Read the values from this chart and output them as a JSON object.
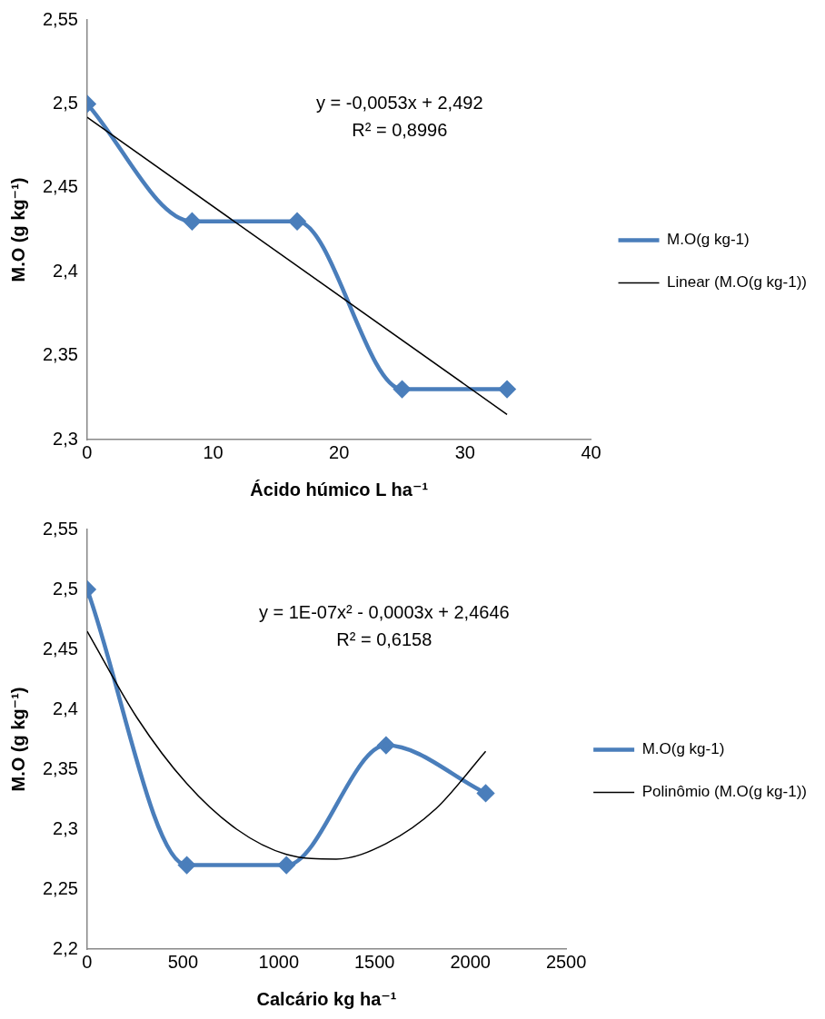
{
  "chart_data": [
    {
      "type": "line",
      "xlabel": "Ácido húmico L ha⁻¹",
      "ylabel": "M.O (g kg⁻¹)",
      "xlim": [
        0,
        40
      ],
      "xticks": [
        0,
        10,
        20,
        30,
        40
      ],
      "ylim": [
        2.3,
        2.55
      ],
      "yticks": [
        {
          "value": 2.3,
          "label": "2,3"
        },
        {
          "value": 2.35,
          "label": "2,35"
        },
        {
          "value": 2.4,
          "label": "2,4"
        },
        {
          "value": 2.45,
          "label": "2,45"
        },
        {
          "value": 2.5,
          "label": "2,5"
        },
        {
          "value": 2.55,
          "label": "2,55"
        }
      ],
      "grid": false,
      "legend": "right",
      "annotations": [
        "y = -0,0053x + 2,492",
        "R² = 0,8996"
      ],
      "series": [
        {
          "name": "M.O(g kg-1)",
          "color": "#4a7ebb",
          "marker": "diamond",
          "x": [
            0,
            8.33,
            16.67,
            25,
            33.33
          ],
          "values": [
            2.5,
            2.43,
            2.43,
            2.33,
            2.33
          ]
        },
        {
          "name": "Linear (M.O(g kg-1))",
          "color": "#000000",
          "marker": "none",
          "x": [
            0,
            33.33
          ],
          "values": [
            2.492,
            2.315
          ]
        }
      ]
    },
    {
      "type": "line",
      "xlabel": "Calcário kg ha⁻¹",
      "ylabel": "M.O (g kg⁻¹)",
      "xlim": [
        0,
        2500
      ],
      "xticks": [
        0,
        500,
        1000,
        1500,
        2000,
        2500
      ],
      "ylim": [
        2.2,
        2.55
      ],
      "yticks": [
        {
          "value": 2.2,
          "label": "2,2"
        },
        {
          "value": 2.25,
          "label": "2,25"
        },
        {
          "value": 2.3,
          "label": "2,3"
        },
        {
          "value": 2.35,
          "label": "2,35"
        },
        {
          "value": 2.4,
          "label": "2,4"
        },
        {
          "value": 2.45,
          "label": "2,45"
        },
        {
          "value": 2.5,
          "label": "2,5"
        },
        {
          "value": 2.55,
          "label": "2,55"
        }
      ],
      "grid": false,
      "legend": "right",
      "annotations": [
        "y = 1E-07x² - 0,0003x + 2,4646",
        "R² = 0,6158"
      ],
      "series": [
        {
          "name": "M.O(g kg-1)",
          "color": "#4a7ebb",
          "marker": "diamond",
          "x": [
            0,
            520,
            1040,
            1560,
            2080
          ],
          "values": [
            2.5,
            2.27,
            2.27,
            2.37,
            2.33
          ]
        },
        {
          "name": "Polinômio (M.O(g kg-1))",
          "color": "#000000",
          "marker": "none",
          "x": [
            0,
            260,
            520,
            780,
            1040,
            1300,
            1560,
            1820,
            2080
          ],
          "values": [
            2.465,
            2.393,
            2.338,
            2.3,
            2.279,
            2.275,
            2.288,
            2.317,
            2.365
          ]
        }
      ]
    }
  ]
}
